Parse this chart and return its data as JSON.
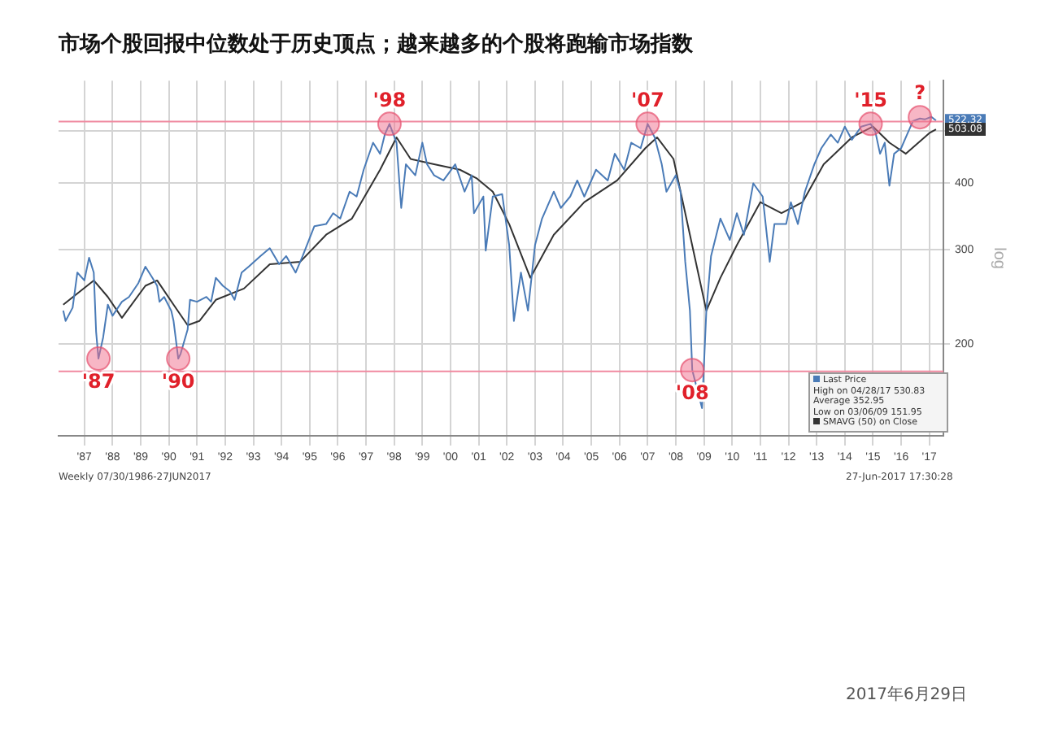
{
  "chart_data": {
    "type": "line",
    "title": "市场个股回报中位数处于历史顶点；越来越多的个股将跑输市场指数",
    "ylabel": "log",
    "log": "y",
    "grid": true,
    "legend": "bottom right",
    "marker": "none",
    "line_style": "solid",
    "xlim": [
      "1986-05",
      "2017-10"
    ],
    "xticks": [
      {
        "value": "1987-04",
        "label": "'87"
      },
      {
        "value": "1988-04",
        "label": "'88"
      },
      {
        "value": "1989-04",
        "label": "'89"
      },
      {
        "value": "1990-04",
        "label": "'90"
      },
      {
        "value": "1991-04",
        "label": "'91"
      },
      {
        "value": "1992-04",
        "label": "'92"
      },
      {
        "value": "1993-04",
        "label": "'93"
      },
      {
        "value": "1994-04",
        "label": "'94"
      },
      {
        "value": "1995-04",
        "label": "'95"
      },
      {
        "value": "1996-04",
        "label": "'96"
      },
      {
        "value": "1997-04",
        "label": "'97"
      },
      {
        "value": "1998-04",
        "label": "'98"
      },
      {
        "value": "1999-04",
        "label": "'99"
      },
      {
        "value": "2000-04",
        "label": "'00"
      },
      {
        "value": "2001-04",
        "label": "'01"
      },
      {
        "value": "2002-04",
        "label": "'02"
      },
      {
        "value": "2003-04",
        "label": "'03"
      },
      {
        "value": "2004-04",
        "label": "'04"
      },
      {
        "value": "2005-04",
        "label": "'05"
      },
      {
        "value": "2006-04",
        "label": "'06"
      },
      {
        "value": "2007-04",
        "label": "'07"
      },
      {
        "value": "2008-04",
        "label": "'08"
      },
      {
        "value": "2009-04",
        "label": "'09"
      },
      {
        "value": "2010-04",
        "label": "'10"
      },
      {
        "value": "2011-04",
        "label": "'11"
      },
      {
        "value": "2012-04",
        "label": "'12"
      },
      {
        "value": "2013-04",
        "label": "'13"
      },
      {
        "value": "2014-04",
        "label": "'14"
      },
      {
        "value": "2015-04",
        "label": "'15"
      },
      {
        "value": "2016-04",
        "label": "'16"
      },
      {
        "value": "2017-04",
        "label": "'17"
      }
    ],
    "ylim": [
      135,
      620
    ],
    "yticks": [
      200,
      300,
      400,
      {
        "value": 500,
        "label": null
      }
    ],
    "series": [
      {
        "name": "Last Price",
        "color": "#4a7bb7",
        "x": [
          "1986-07",
          "1986-08",
          "1986-11",
          "1987-01",
          "1987-04",
          "1987-06",
          "1987-08",
          "1987-09",
          "1987-10",
          "1987-12",
          "1988-02",
          "1988-04",
          "1988-08",
          "1988-11",
          "1989-03",
          "1989-06",
          "1989-09",
          "1989-11",
          "1989-12",
          "1990-02",
          "1990-05",
          "1990-06",
          "1990-08",
          "1990-09",
          "1990-12",
          "1991-01",
          "1991-04",
          "1991-08",
          "1991-10",
          "1991-12",
          "1992-03",
          "1992-06",
          "1992-08",
          "1992-11",
          "1993-02",
          "1993-07",
          "1993-11",
          "1994-03",
          "1994-06",
          "1994-10",
          "1995-01",
          "1995-06",
          "1995-11",
          "1996-02",
          "1996-05",
          "1996-09",
          "1996-12",
          "1997-03",
          "1997-07",
          "1997-10",
          "1997-12",
          "1998-02",
          "1998-05",
          "1998-07",
          "1998-09",
          "1999-01",
          "1999-04",
          "1999-06",
          "1999-09",
          "2000-01",
          "2000-06",
          "2000-10",
          "2001-01",
          "2001-02",
          "2001-06",
          "2001-07",
          "2001-10",
          "2002-02",
          "2002-05",
          "2002-07",
          "2002-10",
          "2003-01",
          "2003-04",
          "2003-07",
          "2003-12",
          "2004-03",
          "2004-07",
          "2004-10",
          "2005-01",
          "2005-06",
          "2005-11",
          "2006-02",
          "2006-06",
          "2006-09",
          "2007-01",
          "2007-04",
          "2007-07",
          "2007-10",
          "2007-12",
          "2008-04",
          "2008-06",
          "2008-08",
          "2008-10",
          "2008-11",
          "2009-03-06",
          "2009-05",
          "2009-07",
          "2009-11",
          "2010-03",
          "2010-06",
          "2010-09",
          "2011-01",
          "2011-05",
          "2011-08",
          "2011-10",
          "2012-03",
          "2012-05",
          "2012-08",
          "2012-11",
          "2013-03",
          "2013-06",
          "2013-10",
          "2014-01",
          "2014-04",
          "2014-07",
          "2014-11",
          "2015-03",
          "2015-05",
          "2015-07",
          "2015-09",
          "2015-11",
          "2016-01",
          "2016-04",
          "2016-06",
          "2016-09",
          "2016-12",
          "2017-02",
          "2017-04-28",
          "2017-06-27"
        ],
        "values": [
          231,
          221,
          234,
          272,
          263,
          290,
          272,
          211,
          188,
          206,
          237,
          226,
          240,
          245,
          260,
          279,
          266,
          257,
          240,
          245,
          231,
          221,
          188,
          192,
          213,
          242,
          240,
          245,
          240,
          266,
          257,
          251,
          242,
          272,
          279,
          292,
          302,
          282,
          292,
          272,
          292,
          332,
          335,
          351,
          343,
          385,
          377,
          423,
          475,
          453,
          492,
          515,
          475,
          359,
          433,
          413,
          475,
          433,
          413,
          404,
          433,
          385,
          413,
          351,
          377,
          299,
          377,
          381,
          306,
          221,
          272,
          231,
          306,
          343,
          385,
          359,
          377,
          404,
          377,
          423,
          404,
          453,
          423,
          475,
          464,
          515,
          486,
          433,
          385,
          413,
          385,
          285,
          231,
          179,
          152,
          231,
          292,
          343,
          313,
          351,
          320,
          399,
          377,
          285,
          335,
          335,
          368,
          335,
          385,
          433,
          464,
          492,
          475,
          509,
          481,
          509,
          515,
          498,
          453,
          475,
          395,
          453,
          464,
          486,
          521,
          527,
          525,
          530.83,
          522.32
        ],
        "value_labels": [
          null,
          null,
          null,
          null,
          null,
          null,
          null,
          null,
          null,
          null,
          null,
          null,
          null,
          null,
          null,
          null,
          null,
          null,
          null,
          null,
          null,
          null,
          null,
          null,
          null,
          null,
          null,
          null,
          null,
          null,
          null,
          null,
          null,
          null,
          null,
          null,
          null,
          null,
          null,
          null,
          null,
          null,
          null,
          null,
          null,
          null,
          null,
          null,
          null,
          null,
          null,
          null,
          null,
          null,
          null,
          null,
          null,
          null,
          null,
          null,
          null,
          null,
          null,
          null,
          null,
          null,
          null,
          null,
          null,
          null,
          null,
          null,
          null,
          null,
          null,
          null,
          null,
          null,
          null,
          null,
          null,
          null,
          null,
          null,
          null,
          null,
          null,
          null,
          null,
          null,
          null,
          null,
          null,
          null,
          null,
          null,
          null,
          null,
          null,
          null,
          null,
          null,
          null,
          null,
          null,
          null,
          null,
          null,
          null,
          null,
          null,
          null,
          null,
          null,
          null,
          null,
          null,
          null,
          null,
          null,
          null,
          null,
          null,
          null,
          null,
          null,
          null,
          null,
          "522.32"
        ]
      },
      {
        "name": "SMAVG (50) on Close",
        "color": "#333333",
        "x": [
          "1986-07",
          "1987-08",
          "1988-02",
          "1988-08",
          "1989-06",
          "1989-11",
          "1990-06",
          "1990-12",
          "1991-05",
          "1991-12",
          "1992-12",
          "1993-11",
          "1994-12",
          "1995-11",
          "1996-10",
          "1997-10",
          "1998-05",
          "1998-11",
          "1999-09",
          "2000-08",
          "2001-03",
          "2001-10",
          "2002-05",
          "2003-02",
          "2003-12",
          "2005-01",
          "2006-03",
          "2007-03",
          "2007-08",
          "2008-03",
          "2008-10",
          "2009-05",
          "2009-11",
          "2010-06",
          "2011-04",
          "2012-01",
          "2012-10",
          "2013-07",
          "2014-07",
          "2015-04",
          "2015-11",
          "2016-06",
          "2017-04",
          "2017-06-27"
        ],
        "values": [
          237,
          263,
          245,
          224,
          257,
          263,
          237,
          217,
          221,
          242,
          254,
          282,
          285,
          320,
          343,
          423,
          486,
          443,
          433,
          423,
          408,
          385,
          335,
          266,
          320,
          368,
          404,
          464,
          486,
          443,
          320,
          231,
          266,
          306,
          368,
          351,
          368,
          433,
          486,
          509,
          475,
          453,
          495,
          503.08
        ],
        "value_labels": [
          null,
          null,
          null,
          null,
          null,
          null,
          null,
          null,
          null,
          null,
          null,
          null,
          null,
          null,
          null,
          null,
          null,
          null,
          null,
          null,
          null,
          null,
          null,
          null,
          null,
          null,
          null,
          null,
          null,
          null,
          null,
          null,
          null,
          null,
          null,
          null,
          null,
          null,
          null,
          null,
          null,
          null,
          null,
          "503.08"
        ]
      }
    ],
    "ref_lines": [
      {
        "axis": "y",
        "value": 520,
        "color": "#f08aa0"
      },
      {
        "axis": "y",
        "value": 178,
        "color": "#f08aa0"
      }
    ],
    "annotations": [
      "High on 04/28/17 530.83",
      "Average 352.95",
      "Low on 03/06/09 151.95",
      "Weekly 07/30/1986-27JUN2017",
      "27-Jun-2017 17:30:28",
      "2017年6月29日",
      {
        "text": "'87",
        "x": "1987-10",
        "y": 188
      },
      {
        "text": "'90",
        "x": "1990-08",
        "y": 188
      },
      {
        "text": "'98",
        "x": "1998-02",
        "y": 515
      },
      {
        "text": "'07",
        "x": "2007-04",
        "y": 515
      },
      {
        "text": "'08",
        "x": "2008-11",
        "y": 179
      },
      {
        "text": "'15",
        "x": "2015-03",
        "y": 515
      },
      {
        "text": "?",
        "x": "2016-12",
        "y": 530
      }
    ]
  }
}
